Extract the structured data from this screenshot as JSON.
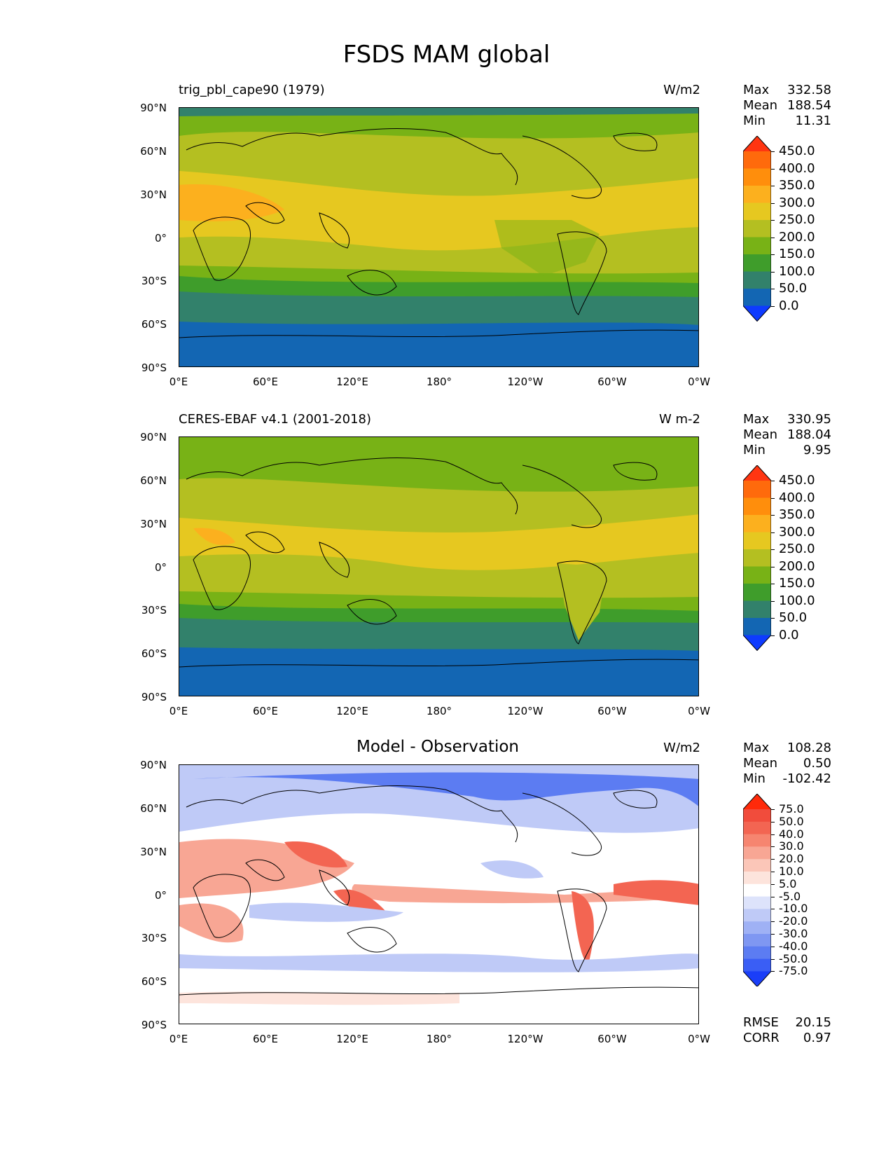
{
  "title": "FSDS MAM global",
  "lat_ticks": [
    "90°N",
    "60°N",
    "30°N",
    "0°",
    "30°S",
    "60°S",
    "90°S"
  ],
  "lon_ticks": [
    "0°E",
    "60°E",
    "120°E",
    "180°",
    "120°W",
    "60°W",
    "0°W"
  ],
  "panels": [
    {
      "name": "trig_pbl_cape90 (1979)",
      "units": "W/m2",
      "stats": {
        "max_label": "Max",
        "max": "332.58",
        "mean_label": "Mean",
        "mean": "188.54",
        "min_label": "Min",
        "min": "11.31"
      },
      "colorbar": {
        "levels": [
          "450.0",
          "400.0",
          "350.0",
          "300.0",
          "250.0",
          "200.0",
          "150.0",
          "100.0",
          "50.0",
          "0.0"
        ],
        "colors": [
          "#ff3511",
          "#ff6a0c",
          "#ff8e0c",
          "#fcb01e",
          "#e6c820",
          "#b4bf21",
          "#78b216",
          "#3f9d2b",
          "#32816b",
          "#1366b3",
          "#0e3bff"
        ]
      }
    },
    {
      "name": "CERES-EBAF v4.1 (2001-2018)",
      "units": "W m-2",
      "stats": {
        "max_label": "Max",
        "max": "330.95",
        "mean_label": "Mean",
        "mean": "188.04",
        "min_label": "Min",
        "min": "9.95"
      },
      "colorbar": {
        "levels": [
          "450.0",
          "400.0",
          "350.0",
          "300.0",
          "250.0",
          "200.0",
          "150.0",
          "100.0",
          "50.0",
          "0.0"
        ],
        "colors": [
          "#ff3511",
          "#ff6a0c",
          "#ff8e0c",
          "#fcb01e",
          "#e6c820",
          "#b4bf21",
          "#78b216",
          "#3f9d2b",
          "#32816b",
          "#1366b3",
          "#0e3bff"
        ]
      }
    },
    {
      "name": "Model - Observation",
      "units": "W/m2",
      "stats": {
        "max_label": "Max",
        "max": "108.28",
        "mean_label": "Mean",
        "mean": "0.50",
        "min_label": "Min",
        "min": "-102.42"
      },
      "colorbar": {
        "levels": [
          "75.0",
          "50.0",
          "40.0",
          "30.0",
          "20.0",
          "10.0",
          "5.0",
          "-5.0",
          "-10.0",
          "-20.0",
          "-30.0",
          "-40.0",
          "-50.0",
          "-75.0"
        ],
        "colors": [
          "#ff2a0a",
          "#f14c3c",
          "#f36552",
          "#f68570",
          "#f8a694",
          "#fbc6b8",
          "#fde4dc",
          "#ffffff",
          "#dde3fb",
          "#bfcaf7",
          "#9fb1f5",
          "#7f97f2",
          "#5c7cf2",
          "#3a5ef5",
          "#1a3ef8"
        ]
      },
      "footer": {
        "rmse_label": "RMSE",
        "rmse": "20.15",
        "corr_label": "CORR",
        "corr": "0.97"
      }
    }
  ],
  "map_colors": {
    "ocean_polar": "#1366b3",
    "teal": "#32816b",
    "green": "#3f9d2b",
    "lightgreen": "#78b216",
    "olive": "#b4bf21",
    "yellow": "#e6c820",
    "orange": "#fcb01e",
    "diff_white": "#ffffff",
    "diff_red": "#f36552",
    "diff_lightred": "#f8a694",
    "diff_blue": "#5c7cf2",
    "diff_lightblue": "#bfcaf7",
    "coast": "#000000"
  }
}
